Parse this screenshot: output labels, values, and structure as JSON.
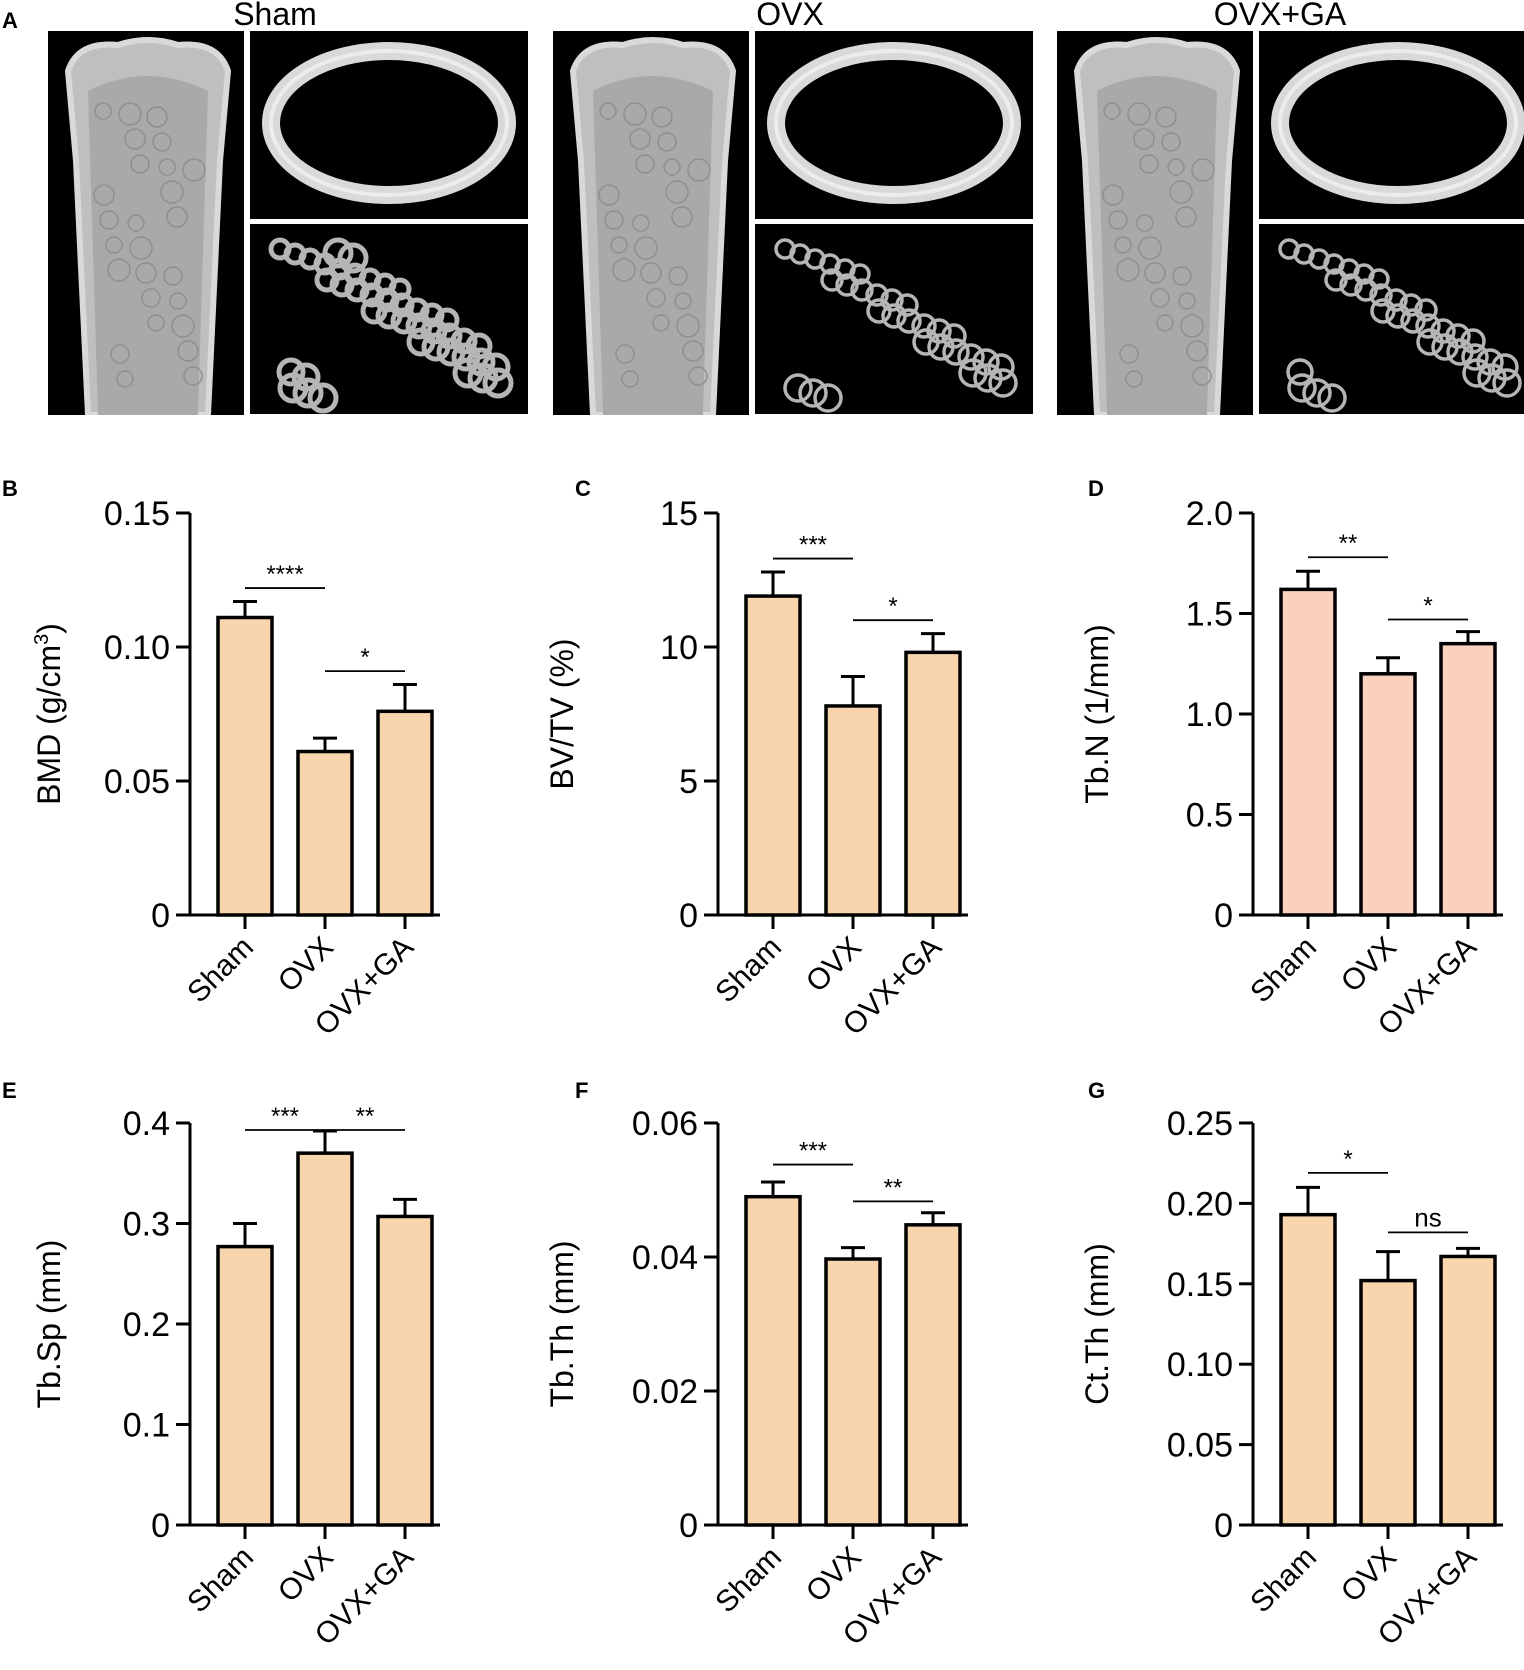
{
  "panel_a": {
    "label": "A",
    "groups": [
      "Sham",
      "OVX",
      "OVX+GA"
    ]
  },
  "colors": {
    "bar_fill": "#f9d5ae",
    "bar_fill_pink": "#f9d1bd",
    "stroke": "#000000",
    "image_bg": "#000000",
    "bone": "#d9d9d9"
  },
  "chart_data": [
    {
      "panel": "B",
      "type": "bar",
      "categories": [
        "Sham",
        "OVX",
        "OVX+GA"
      ],
      "values": [
        0.111,
        0.061,
        0.076
      ],
      "errors": [
        0.006,
        0.005,
        0.01
      ],
      "ylabel_main": "BMD (g/cm",
      "ylabel_sup": "3",
      "ylabel_tail": ")",
      "ylim": [
        0,
        0.15
      ],
      "yticks": [
        0,
        0.05,
        0.1,
        0.15
      ],
      "yticklabels": [
        "0",
        "0.05",
        "0.10",
        "0.15"
      ],
      "significance": [
        {
          "from": 0,
          "to": 1,
          "label": "****",
          "y": 0.122
        },
        {
          "from": 1,
          "to": 2,
          "label": "*",
          "y": 0.091
        }
      ],
      "fill": "#f9d5ae"
    },
    {
      "panel": "C",
      "type": "bar",
      "categories": [
        "Sham",
        "OVX",
        "OVX+GA"
      ],
      "values": [
        11.9,
        7.8,
        9.8
      ],
      "errors": [
        0.9,
        1.1,
        0.7
      ],
      "ylabel_main": "BV/TV (%)",
      "ylabel_sup": "",
      "ylabel_tail": "",
      "ylim": [
        0,
        15
      ],
      "yticks": [
        0,
        5,
        10,
        15
      ],
      "yticklabels": [
        "0",
        "5",
        "10",
        "15"
      ],
      "significance": [
        {
          "from": 0,
          "to": 1,
          "label": "***",
          "y": 13.3
        },
        {
          "from": 1,
          "to": 2,
          "label": "*",
          "y": 11.0
        }
      ],
      "fill": "#f9d5ae"
    },
    {
      "panel": "D",
      "type": "bar",
      "categories": [
        "Sham",
        "OVX",
        "OVX+GA"
      ],
      "values": [
        1.62,
        1.2,
        1.35
      ],
      "errors": [
        0.09,
        0.08,
        0.06
      ],
      "ylabel_main": "Tb.N (1/mm)",
      "ylabel_sup": "",
      "ylabel_tail": "",
      "ylim": [
        0,
        2.0
      ],
      "yticks": [
        0,
        0.5,
        1.0,
        1.5,
        2.0
      ],
      "yticklabels": [
        "0",
        "0.5",
        "1.0",
        "1.5",
        "2.0"
      ],
      "significance": [
        {
          "from": 0,
          "to": 1,
          "label": "**",
          "y": 1.78
        },
        {
          "from": 1,
          "to": 2,
          "label": "*",
          "y": 1.47
        }
      ],
      "fill": "#f9d1bd"
    },
    {
      "panel": "E",
      "type": "bar",
      "categories": [
        "Sham",
        "OVX",
        "OVX+GA"
      ],
      "values": [
        0.277,
        0.37,
        0.307
      ],
      "errors": [
        0.023,
        0.022,
        0.017
      ],
      "ylabel_main": "Tb.Sp (mm)",
      "ylabel_sup": "",
      "ylabel_tail": "",
      "ylim": [
        0,
        0.4
      ],
      "yticks": [
        0,
        0.1,
        0.2,
        0.3,
        0.4
      ],
      "yticklabels": [
        "0",
        "0.1",
        "0.2",
        "0.3",
        "0.4"
      ],
      "significance": [
        {
          "from": 0,
          "to": 1,
          "label": "***",
          "y": 0.393
        },
        {
          "from": 1,
          "to": 2,
          "label": "**",
          "y": 0.393
        }
      ],
      "fill": "#f9d5ae"
    },
    {
      "panel": "F",
      "type": "bar",
      "categories": [
        "Sham",
        "OVX",
        "OVX+GA"
      ],
      "values": [
        0.049,
        0.0397,
        0.0448
      ],
      "errors": [
        0.0022,
        0.0017,
        0.0018
      ],
      "ylabel_main": "Tb.Th (mm)",
      "ylabel_sup": "",
      "ylabel_tail": "",
      "ylim": [
        0,
        0.06
      ],
      "yticks": [
        0,
        0.02,
        0.04,
        0.06
      ],
      "yticklabels": [
        "0",
        "0.02",
        "0.04",
        "0.06"
      ],
      "significance": [
        {
          "from": 0,
          "to": 1,
          "label": "***",
          "y": 0.0538
        },
        {
          "from": 1,
          "to": 2,
          "label": "**",
          "y": 0.0483
        }
      ],
      "fill": "#f9d5ae"
    },
    {
      "panel": "G",
      "type": "bar",
      "categories": [
        "Sham",
        "OVX",
        "OVX+GA"
      ],
      "values": [
        0.193,
        0.152,
        0.167
      ],
      "errors": [
        0.017,
        0.018,
        0.005
      ],
      "ylabel_main": "Ct.Th (mm)",
      "ylabel_sup": "",
      "ylabel_tail": "",
      "ylim": [
        0,
        0.25
      ],
      "yticks": [
        0,
        0.05,
        0.1,
        0.15,
        0.2,
        0.25
      ],
      "yticklabels": [
        "0",
        "0.05",
        "0.10",
        "0.15",
        "0.20",
        "0.25"
      ],
      "significance": [
        {
          "from": 0,
          "to": 1,
          "label": "*",
          "y": 0.219
        },
        {
          "from": 1,
          "to": 2,
          "label": "ns",
          "y": 0.182
        }
      ],
      "fill": "#f9d5ae"
    }
  ]
}
